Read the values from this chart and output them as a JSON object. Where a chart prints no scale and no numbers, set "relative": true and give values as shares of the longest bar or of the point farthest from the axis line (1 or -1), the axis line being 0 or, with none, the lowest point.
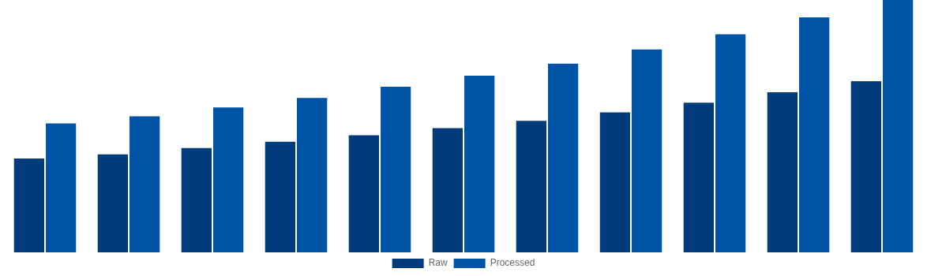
{
  "chart_data": {
    "type": "bar",
    "relative": true,
    "categories": [
      null,
      null,
      null,
      null,
      null,
      null,
      null,
      null,
      null,
      null,
      null
    ],
    "series": [
      {
        "name": "Raw",
        "color": "#023b7b",
        "values": [
          0.372,
          0.388,
          0.413,
          0.438,
          0.464,
          0.492,
          0.521,
          0.555,
          0.593,
          0.634,
          0.678
        ]
      },
      {
        "name": "Processed",
        "color": "#0054a6",
        "values": [
          0.511,
          0.539,
          0.574,
          0.612,
          0.656,
          0.7,
          0.748,
          0.804,
          0.864,
          0.931,
          1
        ]
      }
    ],
    "legend": "bottom"
  }
}
